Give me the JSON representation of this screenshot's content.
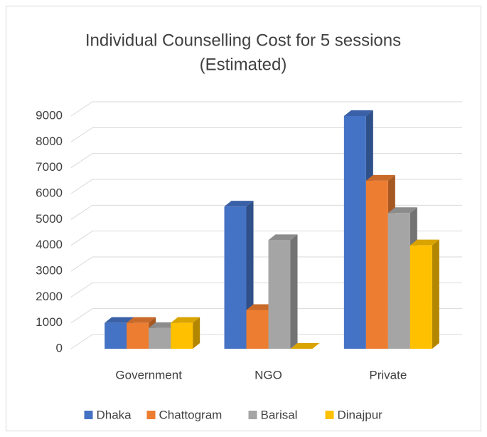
{
  "chart_data": {
    "type": "bar3d",
    "title": "Individual Counselling Cost for 5 sessions",
    "subtitle": "(Estimated)",
    "categories": [
      "Government",
      "NGO",
      "Private"
    ],
    "series": [
      {
        "name": "Dhaka",
        "color": "#4472c4",
        "values": [
          1000,
          5500,
          9000
        ]
      },
      {
        "name": "Chattogram",
        "color": "#ed7d31",
        "values": [
          1000,
          1500,
          6500
        ]
      },
      {
        "name": "Barisal",
        "color": "#a5a5a5",
        "values": [
          800,
          4200,
          5250
        ]
      },
      {
        "name": "Dinajpur",
        "color": "#ffc000",
        "values": [
          1000,
          0,
          4000
        ]
      }
    ],
    "ylim": [
      0,
      9000
    ],
    "yticks": [
      0,
      1000,
      2000,
      3000,
      4000,
      5000,
      6000,
      7000,
      8000,
      9000
    ],
    "grid": true,
    "legend": "bottom"
  }
}
